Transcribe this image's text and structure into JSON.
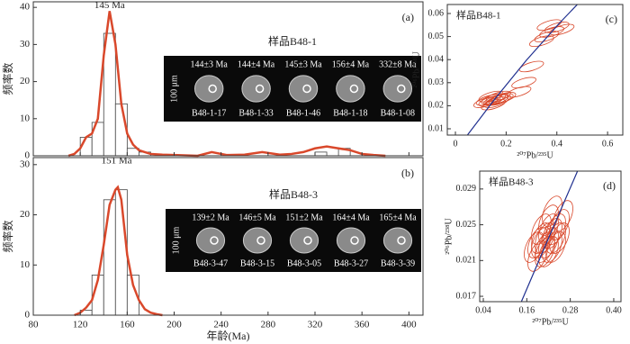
{
  "chart_data": [
    {
      "type": "histogram",
      "panel": "(a)",
      "title": "样品B48-1",
      "ylabel": "频率数",
      "bins": [
        80,
        90,
        100,
        110,
        120,
        130,
        140,
        150,
        160,
        170,
        180,
        190,
        200,
        210,
        220,
        230,
        240,
        250,
        260,
        270,
        280,
        290,
        300,
        310,
        320,
        330,
        340,
        350,
        360,
        370,
        380,
        390,
        400
      ],
      "values": [
        0,
        0,
        0,
        0,
        5,
        9,
        33,
        14,
        2,
        1,
        0,
        0,
        0,
        0,
        0,
        0,
        0,
        0,
        0,
        0,
        0,
        0,
        0,
        0,
        1,
        0,
        2,
        0,
        0,
        0,
        0,
        0
      ],
      "curve": {
        "x": [
          110,
          115,
          120,
          125,
          130,
          135,
          140,
          145,
          150,
          155,
          160,
          165,
          170,
          175,
          180,
          190,
          200,
          220,
          232,
          245,
          260,
          275,
          290,
          300,
          310,
          320,
          330,
          340,
          350,
          360,
          370,
          380
        ],
        "y": [
          0,
          0.5,
          2,
          5,
          6,
          10,
          27,
          39,
          30,
          14,
          6,
          3,
          1.5,
          1,
          0.5,
          0.3,
          0.2,
          0,
          1,
          0.2,
          0.3,
          1,
          0.3,
          0.5,
          1,
          2,
          2.5,
          2,
          1.5,
          0.5,
          0.2,
          0
        ],
        "color": "#d9482b"
      },
      "peak": {
        "x": 145,
        "label": "145 Ma"
      },
      "xlim": [
        80,
        412
      ],
      "ylim": [
        0,
        41.5
      ],
      "xticks": [
        80,
        120,
        160,
        200,
        240,
        280,
        320,
        360,
        400
      ],
      "yticks": [
        0,
        10,
        20,
        30,
        40
      ],
      "scale_label": "100 μm",
      "grains": [
        {
          "age": "144±3 Ma",
          "id": "B48-1-17"
        },
        {
          "age": "144±4 Ma",
          "id": "B48-1-33"
        },
        {
          "age": "145±3 Ma",
          "id": "B48-1-46"
        },
        {
          "age": "156±4 Ma",
          "id": "B48-1-18"
        },
        {
          "age": "332±8 Ma",
          "id": "B48-1-08"
        }
      ]
    },
    {
      "type": "histogram",
      "panel": "(b)",
      "title": "样品B48-3",
      "ylabel": "频率数",
      "xlabel": "年龄(Ma)",
      "bins": [
        80,
        90,
        100,
        110,
        120,
        130,
        140,
        150,
        160,
        170,
        180,
        190,
        200,
        210,
        220,
        230,
        240,
        250,
        260,
        270,
        280,
        290,
        300,
        310,
        320,
        330,
        340,
        350,
        360,
        370,
        380,
        390,
        400
      ],
      "values": [
        0,
        0,
        0,
        0,
        1,
        8,
        23,
        25,
        8,
        0,
        0,
        0,
        0,
        0,
        0,
        0,
        0,
        0,
        0,
        0,
        0,
        0,
        0,
        0,
        0,
        0,
        0,
        0,
        0,
        0,
        0,
        0
      ],
      "curve": {
        "x": [
          115,
          120,
          125,
          130,
          135,
          140,
          145,
          150,
          152,
          155,
          160,
          165,
          170,
          175,
          180,
          185,
          190
        ],
        "y": [
          0,
          0.5,
          1.5,
          3,
          7,
          14,
          22,
          25,
          25.5,
          23,
          12,
          6,
          3,
          1.2,
          0.5,
          0.2,
          0
        ],
        "color": "#d9482b"
      },
      "peak": {
        "x": 151,
        "label": "151 Ma"
      },
      "xlim": [
        80,
        412
      ],
      "ylim": [
        0,
        31.4
      ],
      "xticks": [
        80,
        120,
        160,
        200,
        240,
        280,
        320,
        360,
        400
      ],
      "yticks": [
        0,
        10,
        20,
        30
      ],
      "scale_label": "100 μm",
      "grains": [
        {
          "age": "139±2 Ma",
          "id": "B48-3-47"
        },
        {
          "age": "146±5 Ma",
          "id": "B48-3-15"
        },
        {
          "age": "151±2 Ma",
          "id": "B48-3-05"
        },
        {
          "age": "164±4 Ma",
          "id": "B48-3-27"
        },
        {
          "age": "165±4 Ma",
          "id": "B48-3-39"
        }
      ]
    },
    {
      "type": "concordia",
      "panel": "(c)",
      "title": "样品B48-1",
      "xlabel": "²⁰⁷Pb/²³⁵U",
      "ylabel": "²⁰⁶Pb/²³⁸U",
      "xlim": [
        -0.032,
        0.66
      ],
      "ylim": [
        0.00727,
        0.0639
      ],
      "xticks": [
        0,
        0.2,
        0.4,
        0.6
      ],
      "yticks": [
        0.01,
        0.02,
        0.03,
        0.04,
        0.05,
        0.06
      ],
      "concordia": {
        "x": [
          0.0456,
          0.1539,
          0.2788,
          0.4101,
          0.4815
        ],
        "y": [
          0.00703,
          0.0227,
          0.0396,
          0.0558,
          0.064
        ],
        "color": "#1f2f8f"
      },
      "points": {
        "x": [
          0.12,
          0.14,
          0.15,
          0.16,
          0.17,
          0.15,
          0.18,
          0.13,
          0.16,
          0.19,
          0.14,
          0.17,
          0.25,
          0.27,
          0.3,
          0.34,
          0.36,
          0.38,
          0.4,
          0.42,
          0.37
        ],
        "y": [
          0.0215,
          0.022,
          0.023,
          0.0225,
          0.024,
          0.0205,
          0.023,
          0.0225,
          0.0215,
          0.0235,
          0.024,
          0.0225,
          0.026,
          0.03,
          0.037,
          0.048,
          0.05,
          0.052,
          0.054,
          0.053,
          0.055
        ],
        "color": "#d9482b"
      }
    },
    {
      "type": "concordia",
      "panel": "(d)",
      "title": "样品B48-3",
      "xlabel": "²⁰⁷Pb/²³⁵U",
      "ylabel": "²⁰⁶Pb/²³⁸U",
      "xlim": [
        0.03,
        0.42
      ],
      "ylim": [
        0.0164,
        0.031
      ],
      "xticks": [
        0.04,
        0.16,
        0.28,
        {
          "value": 0.4,
          "label": "0.40"
        }
      ],
      "yticks": [
        0.017,
        0.021,
        0.025,
        0.029
      ],
      "concordia": {
        "x": [
          0.145,
          0.22,
          0.3
        ],
        "y": [
          0.0164,
          0.0235,
          0.031
        ],
        "color": "#1f2f8f"
      },
      "points": {
        "x": [
          0.18,
          0.2,
          0.21,
          0.22,
          0.23,
          0.24,
          0.19,
          0.22,
          0.25,
          0.2,
          0.23,
          0.21,
          0.24,
          0.26,
          0.22,
          0.2,
          0.23,
          0.19,
          0.25,
          0.22,
          0.21,
          0.24
        ],
        "y": [
          0.0225,
          0.023,
          0.0235,
          0.023,
          0.024,
          0.0245,
          0.0215,
          0.022,
          0.025,
          0.0245,
          0.0225,
          0.022,
          0.0235,
          0.026,
          0.0255,
          0.0235,
          0.0265,
          0.023,
          0.0235,
          0.0245,
          0.0225,
          0.0225
        ],
        "color": "#d9482b"
      }
    }
  ]
}
